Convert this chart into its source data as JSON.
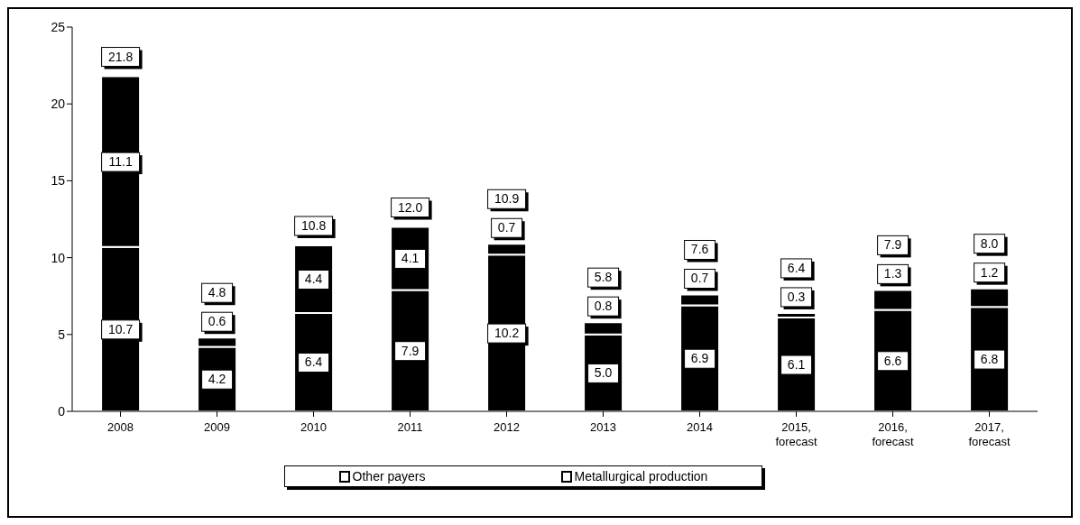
{
  "chart_data": {
    "type": "bar",
    "stacked": true,
    "categories": [
      "2008",
      "2009",
      "2010",
      "2011",
      "2012",
      "2013",
      "2014",
      "2015, forecast",
      "2016, forecast",
      "2017, forecast"
    ],
    "series": [
      {
        "name": "Other payers",
        "color": "#000000",
        "values": [
          10.7,
          4.2,
          6.4,
          7.9,
          10.2,
          5.0,
          6.9,
          6.1,
          6.6,
          6.8
        ],
        "value_labels": [
          "10.7",
          "4.2",
          "6.4",
          "7.9",
          "10.2",
          "5.0",
          "6.9",
          "6.1",
          "6.6",
          "6.8"
        ]
      },
      {
        "name": "Metallurgical production",
        "color": "#000000",
        "values": [
          11.1,
          0.6,
          4.4,
          4.1,
          0.7,
          0.8,
          0.7,
          0.3,
          1.3,
          1.2
        ],
        "value_labels": [
          "11.1",
          "0.6",
          "4.4",
          "4.1",
          "0.7",
          "0.8",
          "0.7",
          "0.3",
          "1.3",
          "1.2"
        ]
      }
    ],
    "totals": [
      "21.8",
      "4.8",
      "10.8",
      "12.0",
      "10.9",
      "5.8",
      "7.6",
      "6.4",
      "7.9",
      "8.0"
    ],
    "ylim": [
      0,
      25
    ],
    "yticks": [
      0,
      5,
      10,
      15,
      20,
      25
    ],
    "grid": false,
    "legend": "bottom"
  }
}
